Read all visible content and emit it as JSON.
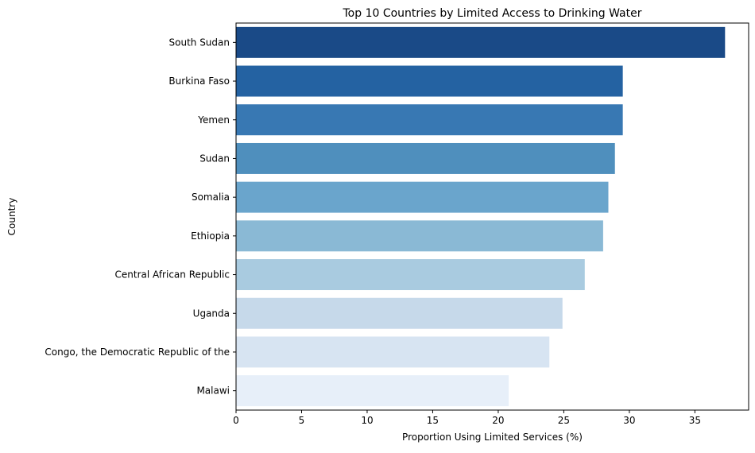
{
  "chart_data": {
    "type": "bar",
    "orientation": "horizontal",
    "title": "Top 10 Countries by Limited Access to Drinking Water",
    "xlabel": "Proportion Using Limited Services (%)",
    "ylabel": "Country",
    "xlim": [
      0,
      39.1
    ],
    "xticks": [
      0,
      5,
      10,
      15,
      20,
      25,
      30,
      35
    ],
    "grid": false,
    "categories": [
      "South Sudan",
      "Burkina Faso",
      "Yemen",
      "Sudan",
      "Somalia",
      "Ethiopia",
      "Central African Republic",
      "Uganda",
      "Congo, the Democratic Republic of the",
      "Malawi"
    ],
    "values": [
      37.3,
      29.5,
      29.5,
      28.9,
      28.4,
      28.0,
      26.6,
      24.9,
      23.9,
      20.8
    ],
    "colors": [
      "#1a4a87",
      "#2462a2",
      "#3878b3",
      "#4f8fbd",
      "#6aa5cc",
      "#8ab9d5",
      "#a9cbe0",
      "#c6d9ea",
      "#d7e4f2",
      "#e7eff9"
    ]
  }
}
